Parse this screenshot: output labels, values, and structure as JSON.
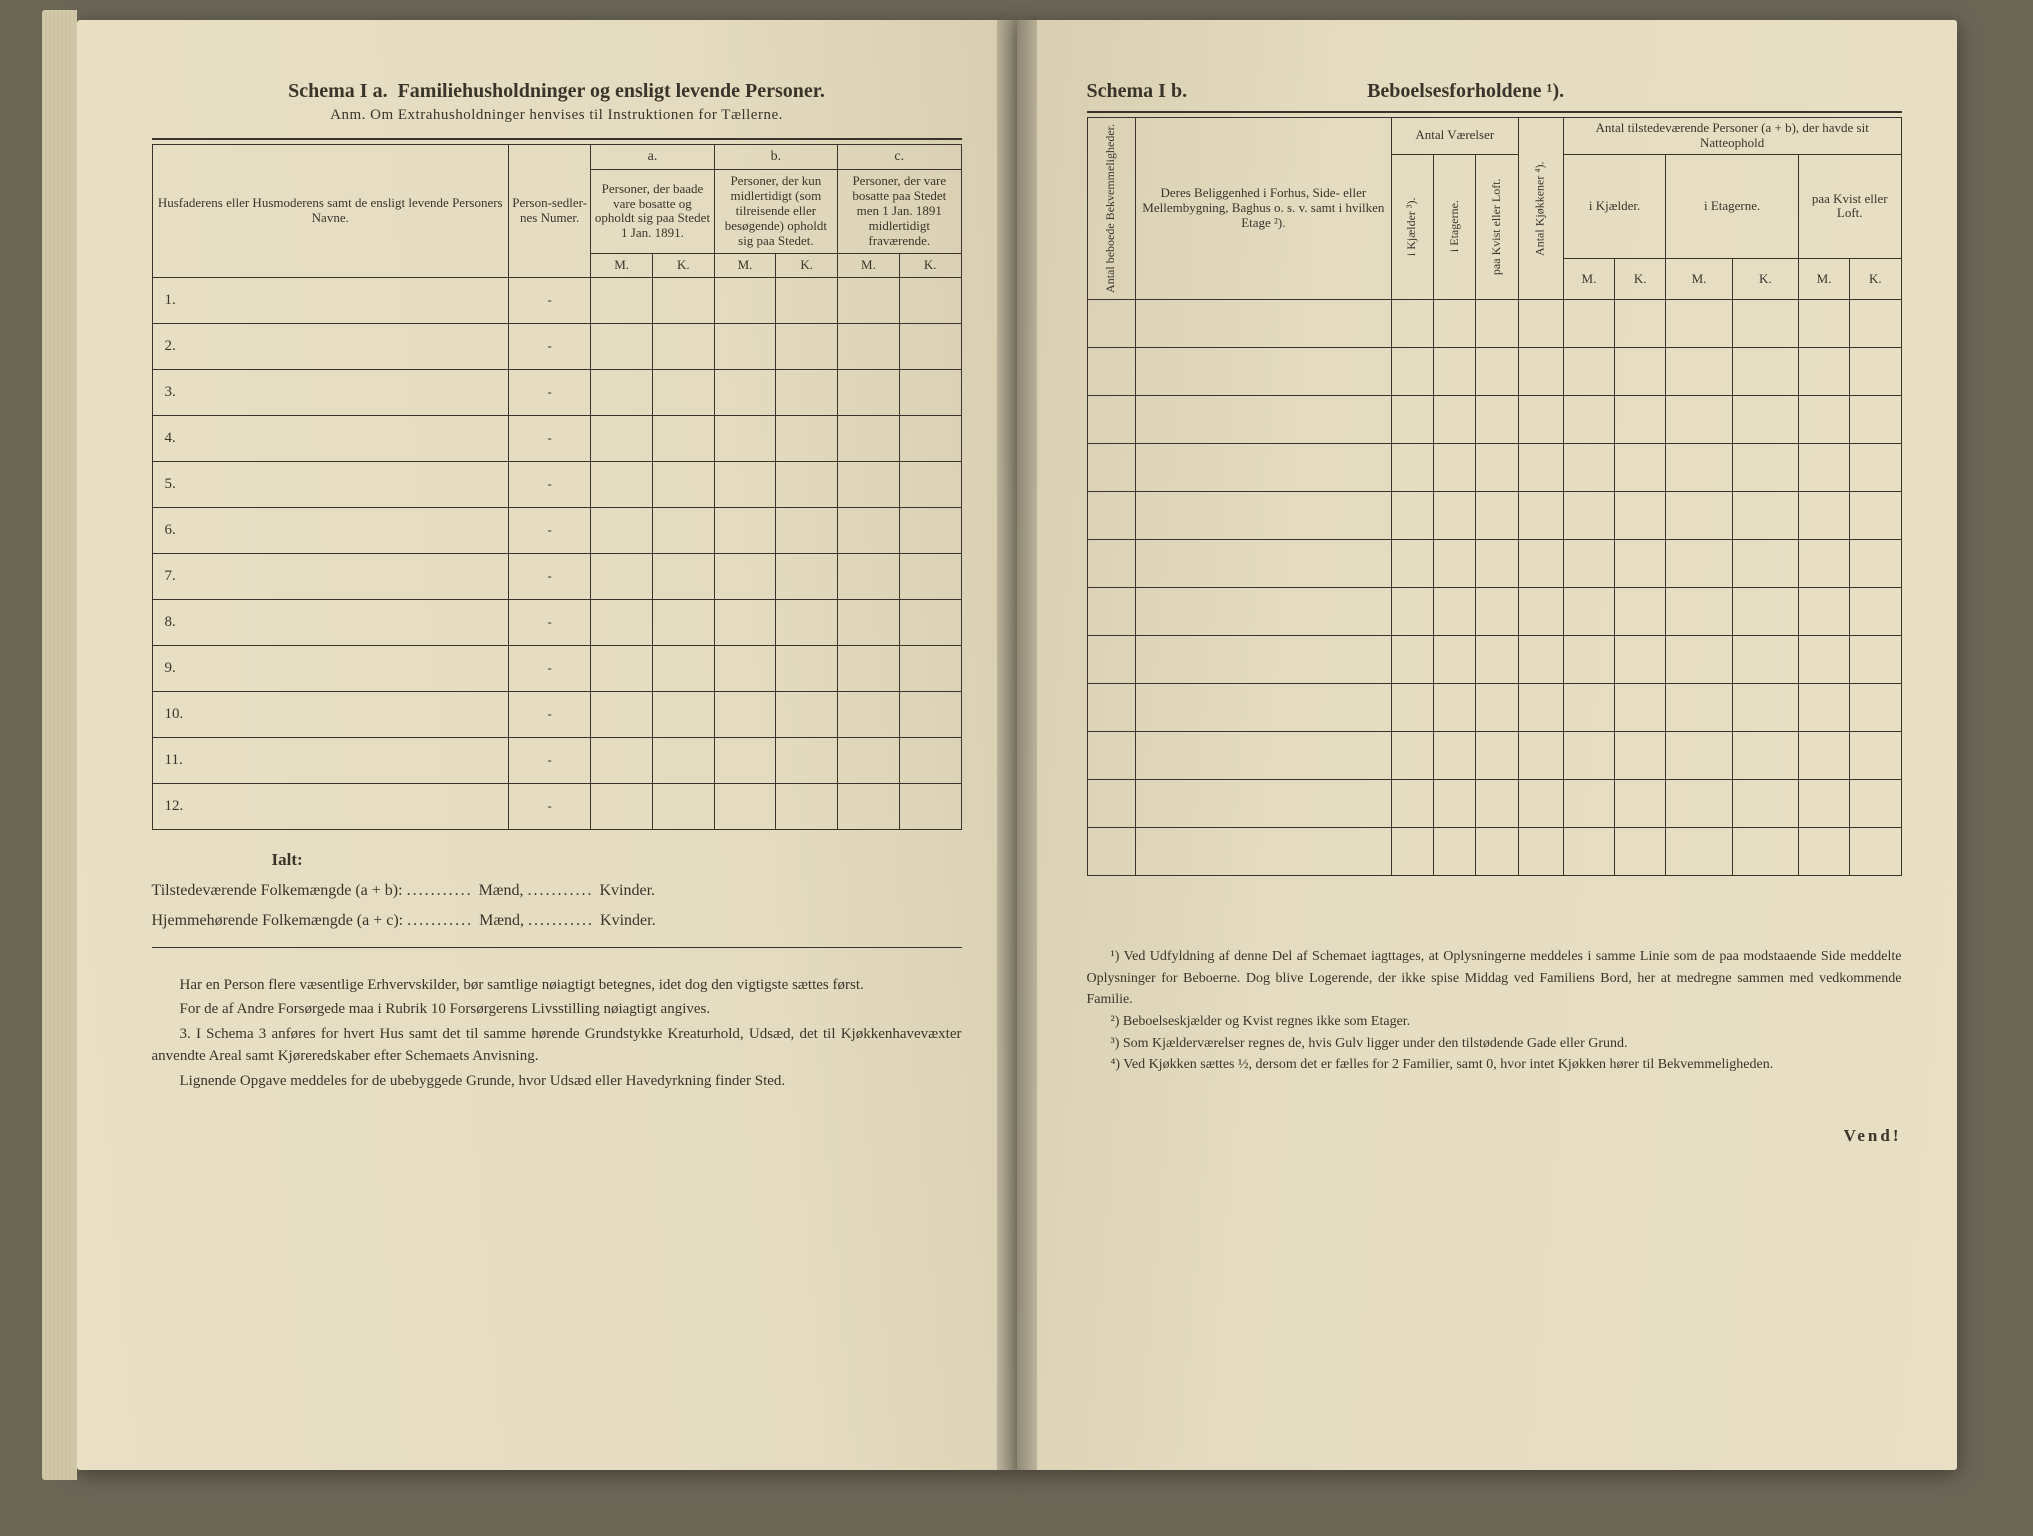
{
  "left": {
    "schemaLabel": "Schema I a.",
    "title": "Familiehusholdninger og ensligt levende Personer.",
    "anm": "Anm. Om Extrahusholdninger henvises til Instruktionen for Tællerne.",
    "col1": "Husfaderens eller Husmoderens samt de ensligt levende Personers Navne.",
    "col2": "Person-sedler-nes Numer.",
    "group_a": "a.",
    "group_b": "b.",
    "group_c": "c.",
    "col_a": "Personer, der baade vare bosatte og opholdt sig paa Stedet 1 Jan. 1891.",
    "col_b": "Personer, der kun midlertidigt (som tilreisende eller besøgende) opholdt sig paa Stedet.",
    "col_c": "Personer, der vare bosatte paa Stedet men 1 Jan. 1891 midlertidigt fraværende.",
    "M": "M.",
    "K": "K.",
    "rows": [
      "1.",
      "2.",
      "3.",
      "4.",
      "5.",
      "6.",
      "7.",
      "8.",
      "9.",
      "10.",
      "11.",
      "12."
    ],
    "ialt": "Ialt:",
    "tot1_label": "Tilstedeværende Folkemængde (a + b):",
    "tot2_label": "Hjemmehørende Folkemængde (a + c):",
    "maend": "Mænd,",
    "kvinder": "Kvinder.",
    "notes": [
      "Har en Person flere væsentlige Erhvervskilder, bør samtlige nøiagtigt betegnes, idet dog den vigtigste sættes først.",
      "For de af Andre Forsørgede maa i Rubrik 10 Forsørgerens Livsstilling nøiagtigt angives.",
      "3. I Schema 3 anføres for hvert Hus samt det til samme hørende Grundstykke Kreaturhold, Udsæd, det til Kjøkkenhavevæxter anvendte Areal samt Kjøreredskaber efter Schemaets Anvisning.",
      "Lignende Opgave meddeles for de ubebyggede Grunde, hvor Udsæd eller Havedyrkning finder Sted."
    ]
  },
  "right": {
    "schemaLabel": "Schema I b.",
    "title": "Beboelsesforholdene ¹).",
    "col_antal_bekv": "Antal beboede Bekvemmeligheder.",
    "col_beligg": "Deres Beliggenhed i Forhus, Side- eller Mellembygning, Baghus o. s. v. samt i hvilken Etage ²).",
    "grp_vaer": "Antal Værelser",
    "col_kjaelder": "i Kjælder ³).",
    "col_etagerne_v": "i Etagerne.",
    "col_kvist_v": "paa Kvist eller Loft.",
    "col_kjokken": "Antal Kjøkkener ⁴).",
    "grp_pers": "Antal tilstedeværende Personer (a + b), der havde sit Natteophold",
    "col_kjael_p": "i Kjælder.",
    "col_etag_p": "i Etagerne.",
    "col_kvist_p": "paa Kvist eller Loft.",
    "M": "M.",
    "K": "K.",
    "numRows": 12,
    "footnotes": [
      "¹) Ved Udfyldning af denne Del af Schemaet iagttages, at Oplysningerne meddeles i samme Linie som de paa modstaaende Side meddelte Oplysninger for Beboerne. Dog blive Logerende, der ikke spise Middag ved Familiens Bord, her at medregne sammen med vedkommende Familie.",
      "²) Beboelseskjælder og Kvist regnes ikke som Etager.",
      "³) Som Kjælderværelser regnes de, hvis Gulv ligger under den tilstødende Gade eller Grund.",
      "⁴) Ved Kjøkken sættes ½, dersom det er fælles for 2 Familier, samt 0, hvor intet Kjøkken hører til Bekvemmeligheden."
    ],
    "vend": "Vend!"
  },
  "colors": {
    "paper": "#e8dfc5",
    "ink": "#3a352a",
    "background": "#6b6556"
  }
}
